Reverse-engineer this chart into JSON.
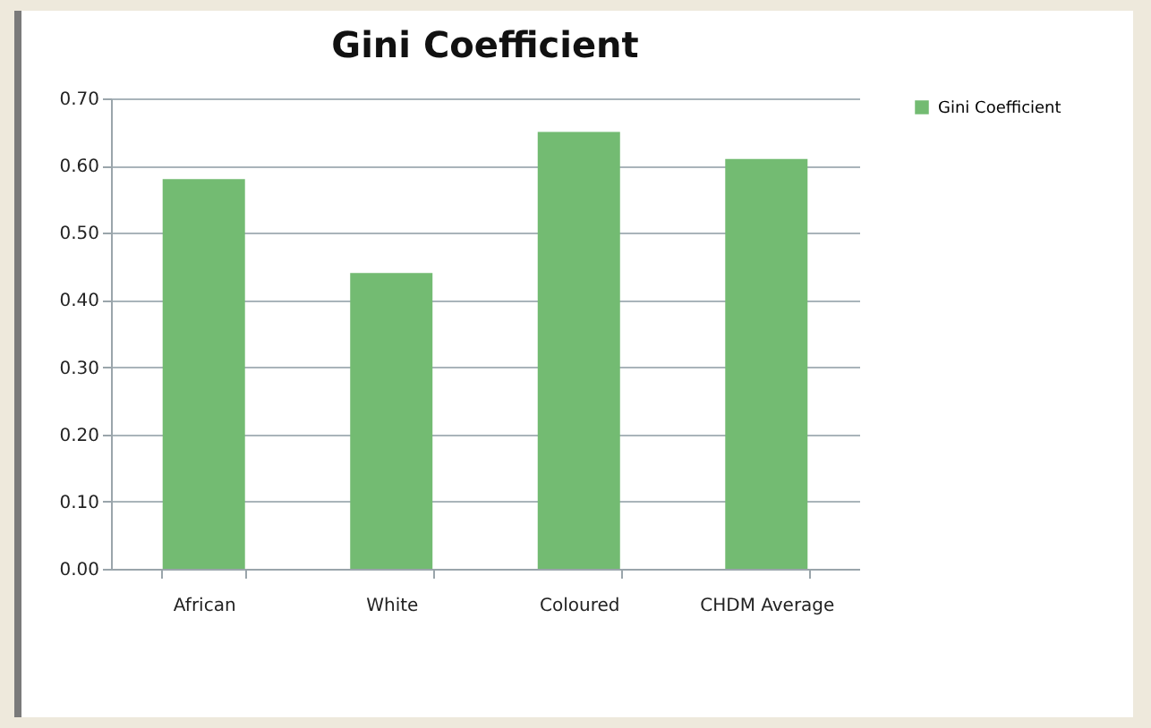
{
  "chart_data": {
    "type": "bar",
    "title": "Gini Coefficient",
    "categories": [
      "African",
      "White",
      "Coloured",
      "CHDM Average"
    ],
    "series": [
      {
        "name": "Gini Coefficient",
        "color": "#73bb72",
        "values": [
          0.58,
          0.44,
          0.65,
          0.61
        ]
      }
    ],
    "ylim": [
      0,
      0.7
    ],
    "yticks": [
      {
        "value": 0,
        "label": "0.00"
      },
      {
        "value": 0.1,
        "label": "0.10"
      },
      {
        "value": 0.2,
        "label": "0.20"
      },
      {
        "value": 0.3,
        "label": "0.30"
      },
      {
        "value": 0.4,
        "label": "0.40"
      },
      {
        "value": 0.5,
        "label": "0.50"
      },
      {
        "value": 0.6,
        "label": "0.60"
      },
      {
        "value": 0.7,
        "label": "0.70"
      }
    ],
    "grid": "y",
    "legend": "right"
  }
}
